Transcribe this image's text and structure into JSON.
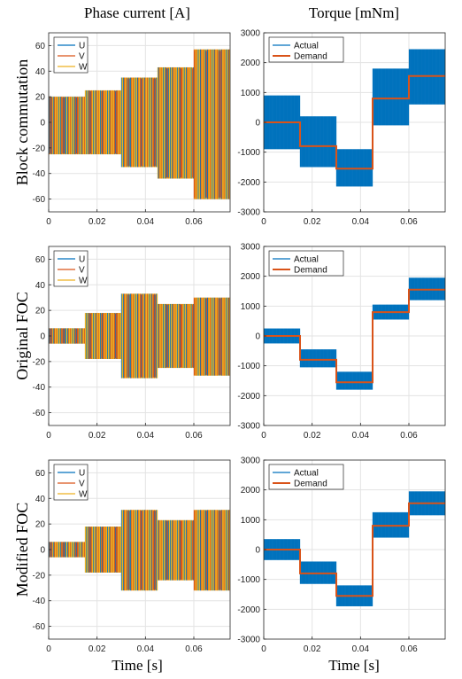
{
  "figure": {
    "col_titles": [
      "Phase current [A]",
      "Torque [mNm]"
    ],
    "row_labels": [
      "Block commutation",
      "Original FOC",
      "Modified FOC"
    ],
    "xlabel": "Time [s]",
    "colors": {
      "U": "#0072BD",
      "V": "#D95319",
      "W": "#EDB120",
      "actual": "#0072BD",
      "demand": "#D95319"
    }
  },
  "chart_data": [
    {
      "type": "line",
      "row": "Block commutation",
      "column": "Phase current [A]",
      "xlim": [
        0,
        0.075
      ],
      "ylim": [
        -70,
        70
      ],
      "xticks": [
        0,
        0.02,
        0.04,
        0.06
      ],
      "yticks": [
        60,
        40,
        20,
        0,
        -20,
        -40,
        -60
      ],
      "grid": true,
      "legend_position": "top-left",
      "series": [
        {
          "name": "U"
        },
        {
          "name": "V"
        },
        {
          "name": "W"
        }
      ],
      "envelope": {
        "x": [
          0,
          0.015,
          0.015,
          0.03,
          0.03,
          0.045,
          0.045,
          0.06,
          0.06,
          0.075
        ],
        "upper": [
          20,
          20,
          25,
          25,
          35,
          35,
          43,
          43,
          57,
          57
        ],
        "lower": [
          -25,
          -25,
          -25,
          -25,
          -35,
          -35,
          -44,
          -44,
          -60,
          -60
        ]
      }
    },
    {
      "type": "line",
      "row": "Block commutation",
      "column": "Torque [mNm]",
      "xlim": [
        0,
        0.075
      ],
      "ylim": [
        -3000,
        3000
      ],
      "xticks": [
        0,
        0.02,
        0.04,
        0.06
      ],
      "yticks": [
        3000,
        2000,
        1000,
        0,
        -1000,
        -2000,
        -3000
      ],
      "grid": true,
      "legend_position": "top-left",
      "series": [
        {
          "name": "Actual",
          "band": {
            "x": [
              0,
              0.015,
              0.015,
              0.03,
              0.03,
              0.045,
              0.045,
              0.06,
              0.06,
              0.075
            ],
            "upper": [
              900,
              900,
              200,
              200,
              -900,
              -900,
              1800,
              1800,
              2450,
              2450
            ],
            "lower": [
              -900,
              -900,
              -1500,
              -1500,
              -2150,
              -2150,
              -100,
              -100,
              600,
              600
            ]
          }
        },
        {
          "name": "Demand",
          "x": [
            0,
            0.015,
            0.015,
            0.03,
            0.03,
            0.045,
            0.045,
            0.06,
            0.06,
            0.075
          ],
          "y": [
            0,
            0,
            -800,
            -800,
            -1550,
            -1550,
            800,
            800,
            1550,
            1550
          ]
        }
      ]
    },
    {
      "type": "line",
      "row": "Original FOC",
      "column": "Phase current [A]",
      "xlim": [
        0,
        0.075
      ],
      "ylim": [
        -70,
        70
      ],
      "xticks": [
        0,
        0.02,
        0.04,
        0.06
      ],
      "yticks": [
        60,
        40,
        20,
        0,
        -20,
        -40,
        -60
      ],
      "grid": true,
      "legend_position": "top-left",
      "series": [
        {
          "name": "U"
        },
        {
          "name": "V"
        },
        {
          "name": "W"
        }
      ],
      "envelope": {
        "x": [
          0,
          0.015,
          0.015,
          0.03,
          0.03,
          0.045,
          0.045,
          0.06,
          0.06,
          0.075
        ],
        "upper": [
          6,
          6,
          18,
          18,
          33,
          33,
          25,
          25,
          30,
          30
        ],
        "lower": [
          -6,
          -6,
          -18,
          -18,
          -33,
          -33,
          -25,
          -25,
          -31,
          -31
        ]
      }
    },
    {
      "type": "line",
      "row": "Original FOC",
      "column": "Torque [mNm]",
      "xlim": [
        0,
        0.075
      ],
      "ylim": [
        -3000,
        3000
      ],
      "xticks": [
        0,
        0.02,
        0.04,
        0.06
      ],
      "yticks": [
        3000,
        2000,
        1000,
        0,
        -1000,
        -2000,
        -3000
      ],
      "grid": true,
      "legend_position": "top-left",
      "series": [
        {
          "name": "Actual",
          "band": {
            "x": [
              0,
              0.015,
              0.015,
              0.03,
              0.03,
              0.045,
              0.045,
              0.06,
              0.06,
              0.075
            ],
            "upper": [
              250,
              250,
              -450,
              -450,
              -1200,
              -1200,
              1050,
              1050,
              1950,
              1950
            ],
            "lower": [
              -250,
              -250,
              -1050,
              -1050,
              -1800,
              -1800,
              550,
              550,
              1200,
              1200
            ]
          }
        },
        {
          "name": "Demand",
          "x": [
            0,
            0.015,
            0.015,
            0.03,
            0.03,
            0.045,
            0.045,
            0.06,
            0.06,
            0.075
          ],
          "y": [
            0,
            0,
            -800,
            -800,
            -1550,
            -1550,
            800,
            800,
            1550,
            1550
          ]
        }
      ]
    },
    {
      "type": "line",
      "row": "Modified FOC",
      "column": "Phase current [A]",
      "xlim": [
        0,
        0.075
      ],
      "ylim": [
        -70,
        70
      ],
      "xticks": [
        0,
        0.02,
        0.04,
        0.06
      ],
      "yticks": [
        60,
        40,
        20,
        0,
        -20,
        -40,
        -60
      ],
      "grid": true,
      "legend_position": "top-left",
      "series": [
        {
          "name": "U"
        },
        {
          "name": "V"
        },
        {
          "name": "W"
        }
      ],
      "envelope": {
        "x": [
          0,
          0.015,
          0.015,
          0.03,
          0.03,
          0.045,
          0.045,
          0.06,
          0.06,
          0.075
        ],
        "upper": [
          6,
          6,
          18,
          18,
          31,
          31,
          23,
          23,
          31,
          31
        ],
        "lower": [
          -6,
          -6,
          -18,
          -18,
          -32,
          -32,
          -24,
          -24,
          -32,
          -32
        ]
      }
    },
    {
      "type": "line",
      "row": "Modified FOC",
      "column": "Torque [mNm]",
      "xlim": [
        0,
        0.075
      ],
      "ylim": [
        -3000,
        3000
      ],
      "xticks": [
        0,
        0.02,
        0.04,
        0.06
      ],
      "yticks": [
        3000,
        2000,
        1000,
        0,
        -1000,
        -2000,
        -3000
      ],
      "grid": true,
      "legend_position": "top-left",
      "series": [
        {
          "name": "Actual",
          "band": {
            "x": [
              0,
              0.015,
              0.015,
              0.03,
              0.03,
              0.045,
              0.045,
              0.06,
              0.06,
              0.075
            ],
            "upper": [
              350,
              350,
              -400,
              -400,
              -1200,
              -1200,
              1250,
              1250,
              1950,
              1950
            ],
            "lower": [
              -350,
              -350,
              -1150,
              -1150,
              -1900,
              -1900,
              400,
              400,
              1150,
              1150
            ]
          }
        },
        {
          "name": "Demand",
          "x": [
            0,
            0.015,
            0.015,
            0.03,
            0.03,
            0.045,
            0.045,
            0.06,
            0.06,
            0.075
          ],
          "y": [
            0,
            0,
            -800,
            -800,
            -1550,
            -1550,
            800,
            800,
            1550,
            1550
          ]
        }
      ]
    }
  ]
}
